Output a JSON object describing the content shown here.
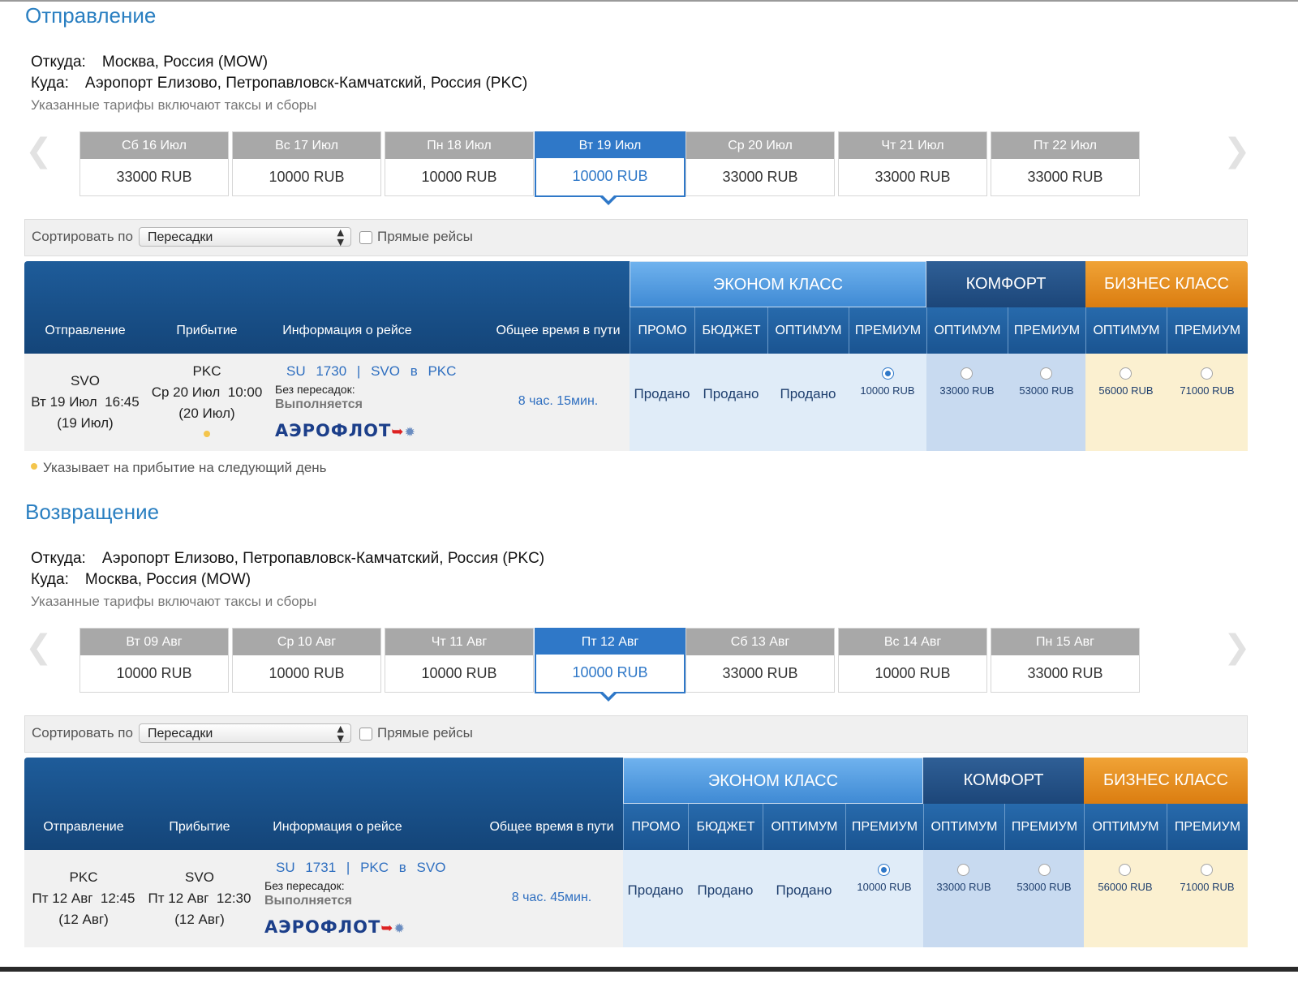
{
  "outbound": {
    "title": "Отправление",
    "from_label": "Откуда:",
    "from_value": "Москва, Россия (MOW)",
    "to_label": "Куда:",
    "to_value": "Аэропорт Елизово, Петропавловск-Камчатский, Россия (PKC)",
    "fare_note": "Указанные тарифы включают таксы и сборы",
    "dates": [
      {
        "day": "Сб 16 Июл",
        "price": "33000 RUB"
      },
      {
        "day": "Вс 17 Июл",
        "price": "10000 RUB"
      },
      {
        "day": "Пн 18 Июл",
        "price": "10000 RUB"
      },
      {
        "day": "Вт 19 Июл",
        "price": "10000 RUB",
        "active": true
      },
      {
        "day": "Ср 20 Июл",
        "price": "33000 RUB"
      },
      {
        "day": "Чт 21 Июл",
        "price": "33000 RUB"
      },
      {
        "day": "Пт 22 Июл",
        "price": "33000 RUB"
      }
    ],
    "sort_label": "Сортировать по",
    "sort_value": "Пересадки",
    "direct_label": "Прямые рейсы",
    "flight": {
      "dep_code": "SVO",
      "dep_datetime": "Вт 19 Июл  16:45",
      "dep_date": "(19 Июл)",
      "arr_code": "PKC",
      "arr_datetime": "Ср 20 Июл  10:00",
      "arr_date": "(20 Июл)",
      "number": "SU 1730",
      "sep": "|",
      "from": "SVO",
      "in": "в",
      "to": "PKC",
      "stops": "Без пересадок:",
      "operated": "Выполняется",
      "airline": "АЭРОФЛОТ",
      "duration": "8 час. 15мин.",
      "fares": [
        "Продано",
        "Продано",
        "Продано",
        "10000 RUB",
        "33000 RUB",
        "53000 RUB",
        "56000 RUB",
        "71000 RUB"
      ]
    },
    "next_day_note": "Указывает на прибытие на следующий день"
  },
  "return": {
    "title": "Возвращение",
    "from_label": "Откуда:",
    "from_value": "Аэропорт Елизово, Петропавловск-Камчатский, Россия (PKC)",
    "to_label": "Куда:",
    "to_value": "Москва, Россия (MOW)",
    "fare_note": "Указанные тарифы включают таксы и сборы",
    "dates": [
      {
        "day": "Вт 09 Авг",
        "price": "10000 RUB"
      },
      {
        "day": "Ср 10 Авг",
        "price": "10000 RUB"
      },
      {
        "day": "Чт 11 Авг",
        "price": "10000 RUB"
      },
      {
        "day": "Пт 12 Авг",
        "price": "10000 RUB",
        "active": true
      },
      {
        "day": "Сб 13 Авг",
        "price": "33000 RUB"
      },
      {
        "day": "Вс 14 Авг",
        "price": "10000 RUB"
      },
      {
        "day": "Пн 15 Авг",
        "price": "33000 RUB"
      }
    ],
    "sort_label": "Сортировать по",
    "sort_value": "Пересадки",
    "direct_label": "Прямые рейсы",
    "flight": {
      "dep_code": "PKC",
      "dep_datetime": "Пт 12 Авг  12:45",
      "dep_date": "(12 Авг)",
      "arr_code": "SVO",
      "arr_datetime": "Пт 12 Авг  12:30",
      "arr_date": "(12 Авг)",
      "number": "SU 1731",
      "sep": "|",
      "from": "PKC",
      "in": "в",
      "to": "SVO",
      "stops": "Без пересадок:",
      "operated": "Выполняется",
      "airline": "АЭРОФЛОТ",
      "duration": "8 час. 45мин.",
      "fares": [
        "Продано",
        "Продано",
        "Продано",
        "10000 RUB",
        "33000 RUB",
        "53000 RUB",
        "56000 RUB",
        "71000 RUB"
      ]
    }
  },
  "table_headers": {
    "departure": "Отправление",
    "arrival": "Прибытие",
    "flight_info": "Информация о рейсе",
    "total_time": "Общее время в пути",
    "economy": "ЭКОНОМ КЛАСС",
    "comfort": "КОМФОРТ",
    "business": "БИЗНЕС КЛАСС",
    "promo": "ПРОМО",
    "budget": "БЮДЖЕТ",
    "optimum": "ОПТИМУМ",
    "premium": "ПРЕМИУМ"
  },
  "colors": {
    "accent": "#2f78c8",
    "header_dark": "#1a5491",
    "business": "#e8901f"
  },
  "icons": {
    "prev": "chevron-left-icon",
    "next": "chevron-right-icon",
    "next_day": "yellow-dot-icon"
  }
}
